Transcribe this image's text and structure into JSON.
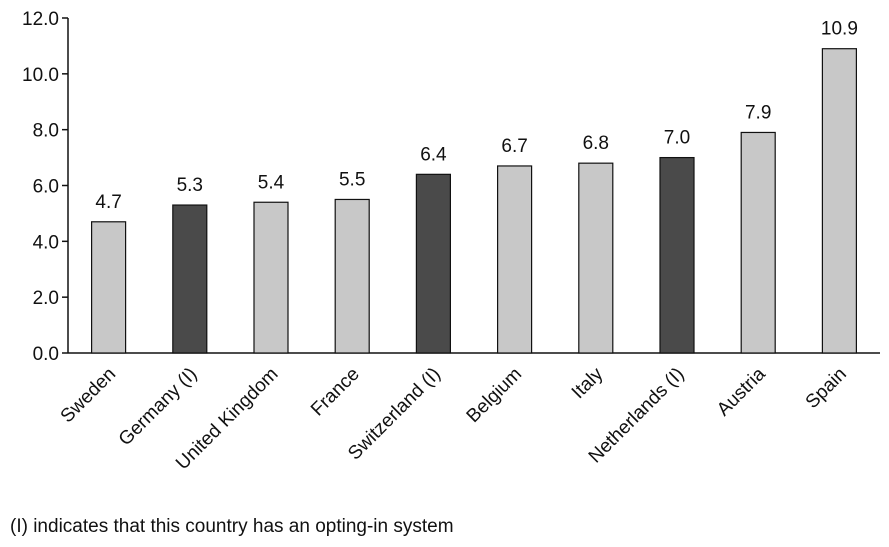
{
  "chart_data": {
    "type": "bar",
    "categories": [
      "Sweden",
      "Germany (I)",
      "United Kingdom",
      "France",
      "Switzerland (I)",
      "Belgium",
      "Italy",
      "Netherlands (I)",
      "Austria",
      "Spain"
    ],
    "values": [
      4.7,
      5.3,
      5.4,
      5.5,
      6.4,
      6.7,
      6.8,
      7.0,
      7.9,
      10.9
    ],
    "value_labels": [
      "4.7",
      "5.3",
      "5.4",
      "5.5",
      "6.4",
      "6.7",
      "6.8",
      "7.0",
      "7.9",
      "10.9"
    ],
    "opting_in": [
      false,
      true,
      false,
      false,
      true,
      false,
      false,
      true,
      false,
      false
    ],
    "yticks": [
      "0.0",
      "2.0",
      "4.0",
      "6.0",
      "8.0",
      "10.0",
      "12.0"
    ],
    "ylim": [
      0,
      12
    ],
    "title": "",
    "xlabel": "",
    "ylabel": "",
    "grid": false,
    "colors": {
      "opting_in": "#4a4a4a",
      "other": "#c8c8c8",
      "outline": "#111111"
    }
  },
  "footnote": "(I) indicates that this country has an opting-in system"
}
